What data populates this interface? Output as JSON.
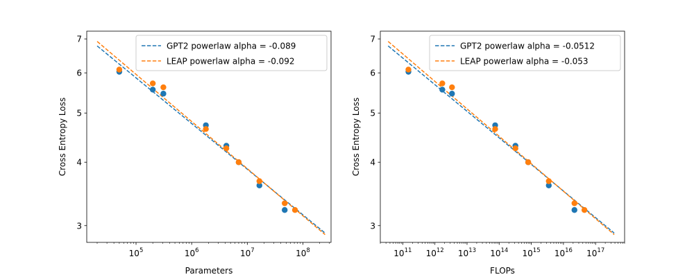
{
  "chart_data": [
    {
      "type": "scatter",
      "xlabel": "Parameters",
      "ylabel": "Cross Entropy Loss",
      "xscale": "log",
      "yscale": "log",
      "xlim": [
        13000,
        320000000
      ],
      "ylim": [
        2.78,
        7.25
      ],
      "xticks": [
        {
          "value": 100000,
          "base": "10",
          "exp": "5"
        },
        {
          "value": 1000000,
          "base": "10",
          "exp": "6"
        },
        {
          "value": 10000000,
          "base": "10",
          "exp": "7"
        },
        {
          "value": 100000000,
          "base": "10",
          "exp": "8"
        }
      ],
      "yticks": [
        {
          "value": 3,
          "label": "3"
        },
        {
          "value": 4,
          "label": "4"
        },
        {
          "value": 5,
          "label": "5"
        },
        {
          "value": 6,
          "label": "6"
        },
        {
          "value": 7,
          "label": "7"
        }
      ],
      "legend_position": "upper-right",
      "series": [
        {
          "name": "GPT2 powerlaw alpha = -0.089",
          "color": "#1f77b4",
          "fit": {
            "x": [
              20000,
              250000000
            ],
            "y": [
              6.78,
              2.9
            ]
          },
          "points": [
            {
              "x": 50000,
              "y": 6.03
            },
            {
              "x": 200000,
              "y": 5.56
            },
            {
              "x": 310000,
              "y": 5.46
            },
            {
              "x": 1800000,
              "y": 4.73
            },
            {
              "x": 4200000,
              "y": 4.31
            },
            {
              "x": 7000000,
              "y": 4.0
            },
            {
              "x": 16500000,
              "y": 3.6
            },
            {
              "x": 47000000,
              "y": 3.22
            }
          ]
        },
        {
          "name": "LEAP powerlaw alpha = -0.092",
          "color": "#ff7f0e",
          "fit": {
            "x": [
              20000,
              250000000
            ],
            "y": [
              6.92,
              2.88
            ]
          },
          "points": [
            {
              "x": 50000,
              "y": 6.09
            },
            {
              "x": 200000,
              "y": 5.72
            },
            {
              "x": 310000,
              "y": 5.62
            },
            {
              "x": 1800000,
              "y": 4.65
            },
            {
              "x": 4200000,
              "y": 4.26
            },
            {
              "x": 7000000,
              "y": 4.0
            },
            {
              "x": 16500000,
              "y": 3.67
            },
            {
              "x": 47000000,
              "y": 3.32
            },
            {
              "x": 72000000,
              "y": 3.22
            }
          ]
        }
      ]
    },
    {
      "type": "scatter",
      "xlabel": "FLOPs",
      "ylabel": "Cross Entropy Loss",
      "xscale": "log",
      "yscale": "log",
      "xlim": [
        20000000000.0,
        8e+17
      ],
      "ylim": [
        2.78,
        7.25
      ],
      "xticks": [
        {
          "value": 100000000000.0,
          "base": "10",
          "exp": "11"
        },
        {
          "value": 1000000000000.0,
          "base": "10",
          "exp": "12"
        },
        {
          "value": 10000000000000.0,
          "base": "10",
          "exp": "13"
        },
        {
          "value": 100000000000000.0,
          "base": "10",
          "exp": "14"
        },
        {
          "value": 1000000000000000.0,
          "base": "10",
          "exp": "15"
        },
        {
          "value": 1e+16,
          "base": "10",
          "exp": "16"
        },
        {
          "value": 1e+17,
          "base": "10",
          "exp": "17"
        }
      ],
      "yticks": [
        {
          "value": 3,
          "label": "3"
        },
        {
          "value": 4,
          "label": "4"
        },
        {
          "value": 5,
          "label": "5"
        },
        {
          "value": 6,
          "label": "6"
        },
        {
          "value": 7,
          "label": "7"
        }
      ],
      "legend_position": "upper-right",
      "series": [
        {
          "name": "GPT2 powerlaw alpha = -0.0512",
          "color": "#1f77b4",
          "fit": {
            "x": [
              35000000000.0,
              3.8e+17
            ],
            "y": [
              6.78,
              2.9
            ]
          },
          "points": [
            {
              "x": 150000000000.0,
              "y": 6.03
            },
            {
              "x": 1700000000000.0,
              "y": 5.56
            },
            {
              "x": 3400000000000.0,
              "y": 5.46
            },
            {
              "x": 75000000000000.0,
              "y": 4.73
            },
            {
              "x": 320000000000000.0,
              "y": 4.31
            },
            {
              "x": 800000000000000.0,
              "y": 4.0
            },
            {
              "x": 3500000000000000.0,
              "y": 3.6
            },
            {
              "x": 2.2e+16,
              "y": 3.22
            }
          ]
        },
        {
          "name": "LEAP powerlaw alpha = -0.053",
          "color": "#ff7f0e",
          "fit": {
            "x": [
              35000000000.0,
              3.8e+17
            ],
            "y": [
              6.92,
              2.88
            ]
          },
          "points": [
            {
              "x": 150000000000.0,
              "y": 6.09
            },
            {
              "x": 1700000000000.0,
              "y": 5.72
            },
            {
              "x": 3400000000000.0,
              "y": 5.62
            },
            {
              "x": 75000000000000.0,
              "y": 4.65
            },
            {
              "x": 320000000000000.0,
              "y": 4.26
            },
            {
              "x": 800000000000000.0,
              "y": 4.0
            },
            {
              "x": 3500000000000000.0,
              "y": 3.67
            },
            {
              "x": 2.2e+16,
              "y": 3.32
            },
            {
              "x": 4.5e+16,
              "y": 3.22
            }
          ]
        }
      ]
    }
  ]
}
